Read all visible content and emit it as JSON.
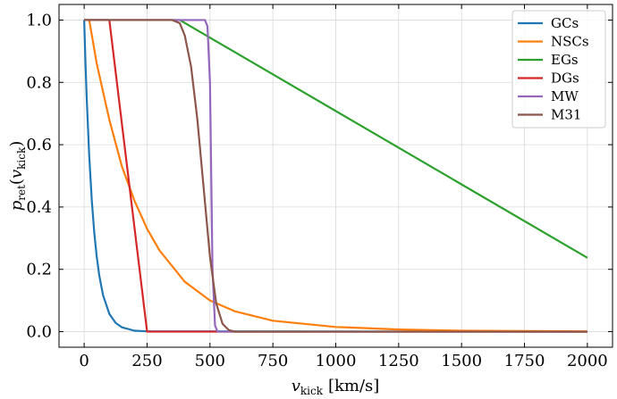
{
  "chart_data": {
    "type": "line",
    "x_label": {
      "symbol": "v",
      "subscript": "kick",
      "unit": "[km/s]"
    },
    "y_label": {
      "symbol": "p",
      "subscript": "ret",
      "open": "(",
      "arg": "v",
      "arg_subscript": "kick",
      "close": ")"
    },
    "xlim": [
      -100,
      2100
    ],
    "ylim": [
      -0.05,
      1.05
    ],
    "xticks": [
      0,
      250,
      500,
      750,
      1000,
      1250,
      1500,
      1750,
      2000
    ],
    "yticks": [
      {
        "value": 0,
        "label": "0.0"
      },
      {
        "value": 0.2,
        "label": "0.2"
      },
      {
        "value": 0.4,
        "label": "0.4"
      },
      {
        "value": 0.6,
        "label": "0.6"
      },
      {
        "value": 0.8,
        "label": "0.8"
      },
      {
        "value": 1,
        "label": "1.0"
      }
    ],
    "grid": true,
    "legend": "upper right",
    "series": [
      {
        "name": "GCs",
        "color": "#1f77b4",
        "x": [
          0,
          5,
          10,
          20,
          30,
          40,
          50,
          60,
          75,
          100,
          125,
          150,
          200,
          250,
          2000
        ],
        "values": [
          1,
          0.867,
          0.751,
          0.565,
          0.424,
          0.319,
          0.24,
          0.18,
          0.117,
          0.057,
          0.028,
          0.014,
          0.003,
          0.001,
          0
        ]
      },
      {
        "name": "NSCs",
        "color": "#ff7f0e",
        "x": [
          0,
          20,
          50,
          100,
          150,
          200,
          250,
          300,
          400,
          500,
          600,
          750,
          1000,
          1250,
          1500,
          2000
        ],
        "values": [
          1,
          1,
          0.86,
          0.68,
          0.53,
          0.42,
          0.33,
          0.26,
          0.16,
          0.1,
          0.065,
          0.035,
          0.015,
          0.007,
          0.003,
          0.001
        ]
      },
      {
        "name": "EGs",
        "color": "#2ca02c",
        "x": [
          0,
          380,
          2000
        ],
        "values": [
          1,
          1,
          0.237
        ]
      },
      {
        "name": "DGs",
        "color": "#d62728",
        "x": [
          0,
          100,
          250,
          2000
        ],
        "values": [
          1,
          1,
          0,
          0
        ]
      },
      {
        "name": "MW",
        "color": "#9467bd",
        "x": [
          0,
          480,
          490,
          500,
          505,
          510,
          520,
          530,
          2000
        ],
        "values": [
          1,
          1,
          0.98,
          0.8,
          0.5,
          0.2,
          0.02,
          0,
          0
        ]
      },
      {
        "name": "M31",
        "color": "#8c564b",
        "x": [
          0,
          350,
          380,
          400,
          425,
          450,
          475,
          500,
          525,
          550,
          575,
          600,
          2000
        ],
        "values": [
          1,
          1,
          0.99,
          0.95,
          0.85,
          0.68,
          0.46,
          0.24,
          0.09,
          0.025,
          0.005,
          0,
          0
        ]
      }
    ]
  }
}
